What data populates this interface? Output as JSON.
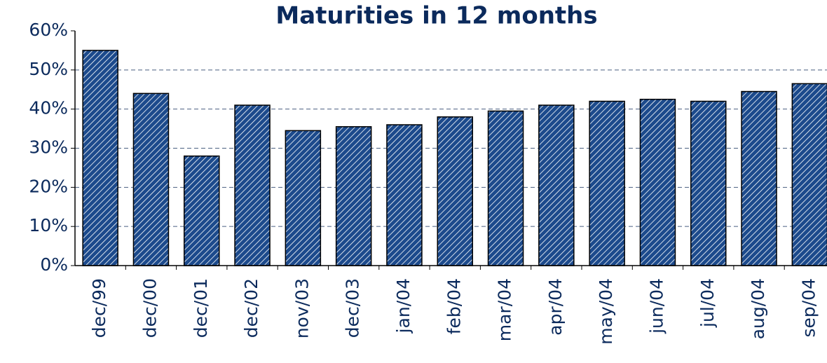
{
  "chart_data": {
    "type": "bar",
    "title": "Maturities in 12 months",
    "categories": [
      "dec/99",
      "dec/00",
      "dec/01",
      "dec/02",
      "nov/03",
      "dec/03",
      "jan/04",
      "feb/04",
      "mar/04",
      "apr/04",
      "may/04",
      "jun/04",
      "jul/04",
      "aug/04",
      "sep/04"
    ],
    "values": [
      55,
      44,
      28,
      41,
      34.5,
      35.5,
      36,
      38,
      39.5,
      41,
      42,
      42.5,
      42,
      44.5,
      46.5
    ],
    "color": "#1c4a8c",
    "ylim": [
      0,
      60
    ],
    "yticks": [
      {
        "value": 0,
        "label": "0%"
      },
      {
        "value": 10,
        "label": "10%"
      },
      {
        "value": 20,
        "label": "20%"
      },
      {
        "value": 30,
        "label": "30%"
      },
      {
        "value": 40,
        "label": "40%"
      },
      {
        "value": 50,
        "label": "50%"
      },
      {
        "value": 60,
        "label": "60%"
      }
    ],
    "grid": true
  }
}
